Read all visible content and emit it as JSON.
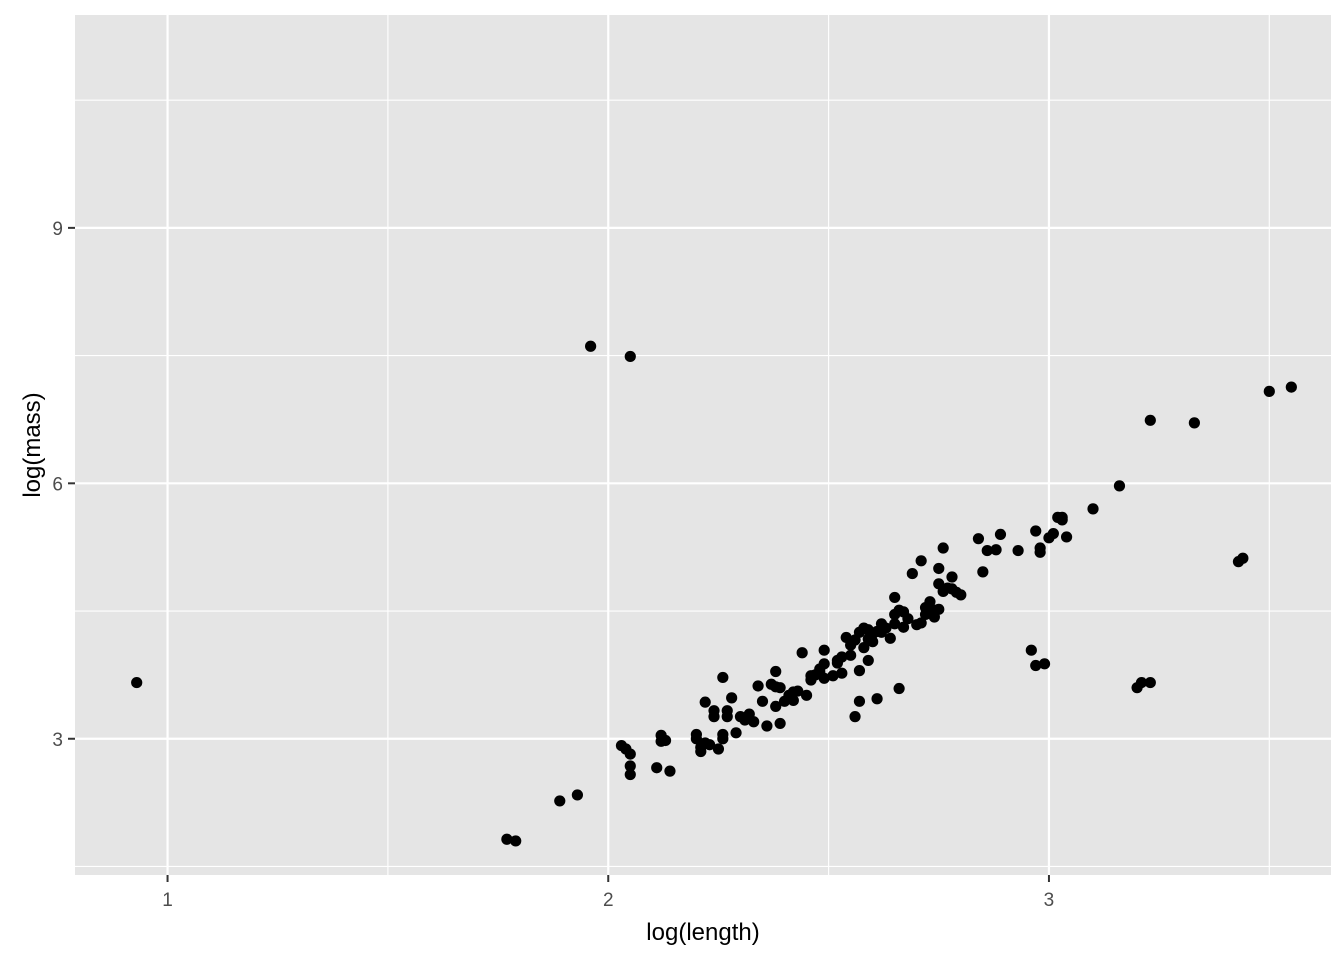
{
  "chart_data": {
    "type": "scatter",
    "title": "",
    "xlabel": "log(length)",
    "ylabel": "log(mass)",
    "xlim": [
      0.79,
      3.64
    ],
    "ylim": [
      1.4,
      11.5
    ],
    "x_ticks": [
      1,
      2,
      3
    ],
    "x_tick_labels": [
      "1",
      "2",
      "3"
    ],
    "y_ticks": [
      3,
      6,
      9
    ],
    "y_tick_labels": [
      "3",
      "6",
      "9"
    ],
    "x_minor_ticks": [
      1.5,
      2.5,
      3.5
    ],
    "y_minor_ticks": [
      1.5,
      4.5,
      7.5,
      10.5
    ],
    "grid": true,
    "legend": "none",
    "colors": {
      "panel": "#e5e5e5",
      "grid": "#ffffff",
      "point": "#000000",
      "tick": "#333333"
    },
    "points": [
      [
        0.93,
        3.66
      ],
      [
        1.77,
        1.82
      ],
      [
        1.79,
        1.8
      ],
      [
        1.89,
        2.27
      ],
      [
        1.93,
        2.34
      ],
      [
        1.96,
        7.61
      ],
      [
        2.05,
        7.49
      ],
      [
        2.03,
        2.92
      ],
      [
        2.04,
        2.88
      ],
      [
        2.05,
        2.82
      ],
      [
        2.05,
        2.68
      ],
      [
        2.05,
        2.58
      ],
      [
        2.11,
        2.66
      ],
      [
        2.12,
        3.04
      ],
      [
        2.12,
        2.97
      ],
      [
        2.13,
        2.98
      ],
      [
        2.14,
        2.62
      ],
      [
        2.2,
        3.05
      ],
      [
        2.2,
        3.0
      ],
      [
        2.21,
        2.9
      ],
      [
        2.21,
        2.85
      ],
      [
        2.22,
        3.43
      ],
      [
        2.22,
        2.95
      ],
      [
        2.23,
        2.93
      ],
      [
        2.24,
        3.33
      ],
      [
        2.24,
        3.26
      ],
      [
        2.25,
        2.88
      ],
      [
        2.26,
        3.05
      ],
      [
        2.26,
        3.0
      ],
      [
        2.26,
        3.72
      ],
      [
        2.27,
        3.33
      ],
      [
        2.27,
        3.26
      ],
      [
        2.28,
        3.48
      ],
      [
        2.29,
        3.07
      ],
      [
        2.3,
        3.26
      ],
      [
        2.31,
        3.22
      ],
      [
        2.32,
        3.29
      ],
      [
        2.33,
        3.2
      ],
      [
        2.34,
        3.62
      ],
      [
        2.35,
        3.44
      ],
      [
        2.36,
        3.15
      ],
      [
        2.37,
        3.64
      ],
      [
        2.38,
        3.61
      ],
      [
        2.38,
        3.79
      ],
      [
        2.38,
        3.38
      ],
      [
        2.39,
        3.18
      ],
      [
        2.39,
        3.6
      ],
      [
        2.4,
        3.44
      ],
      [
        2.41,
        3.51
      ],
      [
        2.42,
        3.55
      ],
      [
        2.42,
        3.45
      ],
      [
        2.43,
        3.56
      ],
      [
        2.44,
        4.01
      ],
      [
        2.45,
        3.51
      ],
      [
        2.46,
        3.74
      ],
      [
        2.46,
        3.69
      ],
      [
        2.47,
        3.75
      ],
      [
        2.48,
        3.78
      ],
      [
        2.48,
        3.82
      ],
      [
        2.49,
        4.04
      ],
      [
        2.49,
        3.88
      ],
      [
        2.49,
        3.71
      ],
      [
        2.51,
        3.74
      ],
      [
        2.52,
        3.92
      ],
      [
        2.52,
        3.89
      ],
      [
        2.53,
        3.96
      ],
      [
        2.53,
        3.77
      ],
      [
        2.54,
        4.19
      ],
      [
        2.55,
        4.1
      ],
      [
        2.55,
        3.98
      ],
      [
        2.56,
        4.16
      ],
      [
        2.56,
        3.26
      ],
      [
        2.57,
        4.25
      ],
      [
        2.57,
        3.44
      ],
      [
        2.57,
        3.8
      ],
      [
        2.58,
        4.07
      ],
      [
        2.58,
        4.3
      ],
      [
        2.59,
        4.17
      ],
      [
        2.59,
        3.92
      ],
      [
        2.59,
        4.28
      ],
      [
        2.6,
        4.14
      ],
      [
        2.6,
        4.23
      ],
      [
        2.61,
        4.26
      ],
      [
        2.61,
        3.47
      ],
      [
        2.62,
        4.25
      ],
      [
        2.62,
        4.35
      ],
      [
        2.63,
        4.3
      ],
      [
        2.64,
        4.18
      ],
      [
        2.65,
        4.66
      ],
      [
        2.65,
        4.35
      ],
      [
        2.65,
        4.46
      ],
      [
        2.66,
        3.59
      ],
      [
        2.66,
        4.51
      ],
      [
        2.67,
        4.49
      ],
      [
        2.67,
        4.31
      ],
      [
        2.68,
        4.41
      ],
      [
        2.69,
        4.94
      ],
      [
        2.7,
        4.34
      ],
      [
        2.71,
        4.36
      ],
      [
        2.71,
        5.09
      ],
      [
        2.72,
        4.54
      ],
      [
        2.72,
        4.46
      ],
      [
        2.73,
        4.61
      ],
      [
        2.74,
        4.51
      ],
      [
        2.74,
        4.43
      ],
      [
        2.75,
        4.82
      ],
      [
        2.75,
        5.0
      ],
      [
        2.75,
        4.52
      ],
      [
        2.76,
        5.24
      ],
      [
        2.76,
        4.73
      ],
      [
        2.77,
        4.77
      ],
      [
        2.78,
        4.9
      ],
      [
        2.78,
        4.76
      ],
      [
        2.79,
        4.72
      ],
      [
        2.8,
        4.69
      ],
      [
        2.84,
        5.35
      ],
      [
        2.85,
        4.96
      ],
      [
        2.86,
        5.21
      ],
      [
        2.88,
        5.22
      ],
      [
        2.89,
        5.4
      ],
      [
        2.93,
        5.21
      ],
      [
        2.96,
        4.04
      ],
      [
        2.97,
        3.86
      ],
      [
        2.97,
        5.44
      ],
      [
        2.98,
        5.24
      ],
      [
        2.98,
        5.19
      ],
      [
        2.99,
        3.88
      ],
      [
        3.0,
        5.36
      ],
      [
        3.01,
        5.41
      ],
      [
        3.02,
        5.6
      ],
      [
        3.03,
        5.57
      ],
      [
        3.03,
        5.6
      ],
      [
        3.04,
        5.37
      ],
      [
        3.1,
        5.7
      ],
      [
        3.16,
        5.97
      ],
      [
        3.2,
        3.6
      ],
      [
        3.21,
        3.66
      ],
      [
        3.23,
        3.66
      ],
      [
        3.23,
        6.74
      ],
      [
        3.33,
        6.71
      ],
      [
        3.43,
        5.08
      ],
      [
        3.44,
        5.12
      ],
      [
        3.5,
        7.08
      ],
      [
        3.55,
        7.13
      ]
    ]
  }
}
